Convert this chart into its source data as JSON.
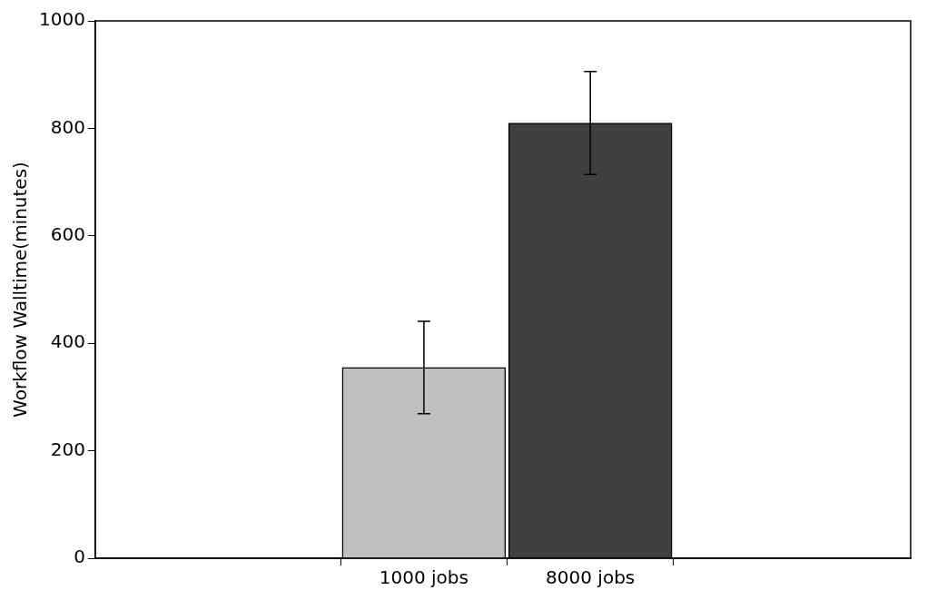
{
  "chart_data": {
    "type": "bar",
    "ylabel": "Workflow Walltime(minutes)",
    "categories": [
      "1000 jobs",
      "8000 jobs"
    ],
    "values": [
      355,
      810
    ],
    "colors": [
      "#bfbfbf",
      "#404040"
    ],
    "errors": [
      86,
      96
    ],
    "ylim": [
      0,
      1000
    ],
    "yticks": [
      0,
      200,
      400,
      600,
      800,
      1000
    ],
    "grid": false,
    "legend": false
  }
}
